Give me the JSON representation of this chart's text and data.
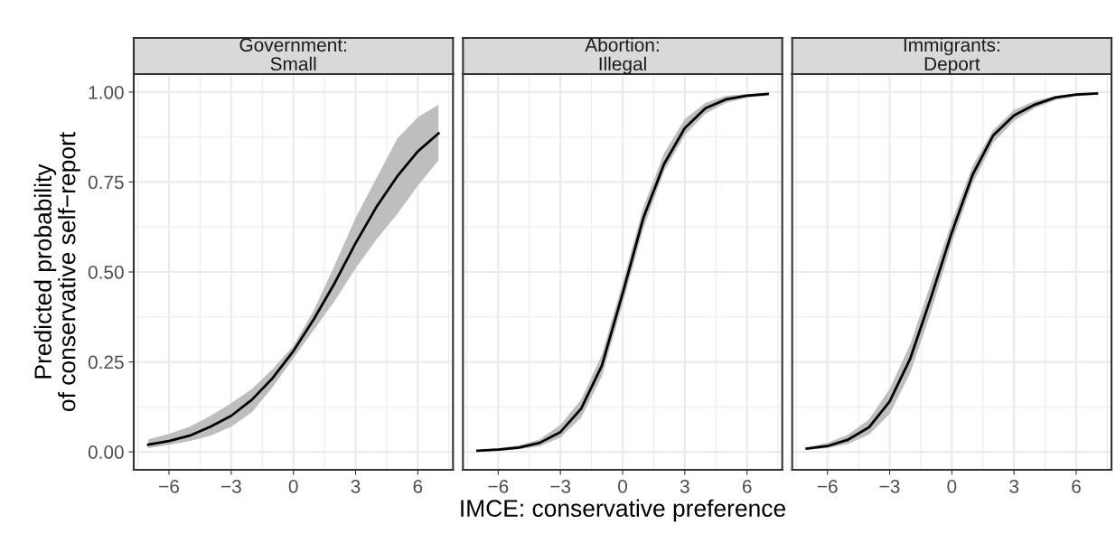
{
  "chart_data": [
    {
      "type": "line",
      "title": "Government:\nSmall",
      "ylabel": "Predicted probability\nof conservative self−report",
      "x": [
        -7,
        -6,
        -5,
        -4,
        -3,
        -2,
        -1,
        0,
        1,
        2,
        3,
        4,
        5,
        6,
        7
      ],
      "xlim": [
        -7.7,
        7.7
      ],
      "xticks": [
        -6,
        -3,
        0,
        3,
        6
      ],
      "ylim": [
        -0.05,
        1.05
      ],
      "yticks": [
        {
          "value": 0,
          "label": "0.00"
        },
        {
          "value": 0.25,
          "label": "0.25"
        },
        {
          "value": 0.5,
          "label": "0.50"
        },
        {
          "value": 0.75,
          "label": "0.75"
        },
        {
          "value": 1,
          "label": "1.00"
        }
      ],
      "grid": true,
      "series": [
        {
          "color": "#000000",
          "values": [
            0.02,
            0.03,
            0.045,
            0.07,
            0.1,
            0.145,
            0.205,
            0.28,
            0.37,
            0.47,
            0.58,
            0.68,
            0.765,
            0.835,
            0.885
          ],
          "lower": [
            0.01,
            0.02,
            0.03,
            0.045,
            0.07,
            0.11,
            0.18,
            0.26,
            0.34,
            0.42,
            0.51,
            0.59,
            0.66,
            0.74,
            0.81
          ],
          "upper": [
            0.035,
            0.05,
            0.07,
            0.1,
            0.135,
            0.175,
            0.23,
            0.295,
            0.395,
            0.52,
            0.65,
            0.76,
            0.87,
            0.93,
            0.965
          ]
        }
      ]
    },
    {
      "type": "line",
      "title": "Abortion:\nIllegal",
      "xlabel": "IMCE: conservative preference",
      "x": [
        -7,
        -6,
        -5,
        -4,
        -3,
        -2,
        -1,
        0,
        1,
        2,
        3,
        4,
        5,
        6,
        7
      ],
      "xlim": [
        -7.7,
        7.7
      ],
      "xticks": [
        -6,
        -3,
        0,
        3,
        6
      ],
      "ylim": [
        -0.05,
        1.05
      ],
      "yticks": [
        0,
        0.25,
        0.5,
        0.75,
        1
      ],
      "grid": true,
      "tick_labels": "x",
      "series": [
        {
          "color": "#000000",
          "values": [
            0.003,
            0.006,
            0.012,
            0.025,
            0.055,
            0.12,
            0.24,
            0.44,
            0.65,
            0.8,
            0.9,
            0.955,
            0.98,
            0.99,
            0.995
          ],
          "lower": [
            0.001,
            0.003,
            0.007,
            0.015,
            0.04,
            0.095,
            0.21,
            0.41,
            0.62,
            0.78,
            0.88,
            0.94,
            0.97,
            0.985,
            0.99
          ],
          "upper": [
            0.005,
            0.01,
            0.018,
            0.035,
            0.075,
            0.145,
            0.27,
            0.47,
            0.68,
            0.83,
            0.925,
            0.97,
            0.99,
            0.995,
            0.998
          ]
        }
      ]
    },
    {
      "type": "line",
      "title": "Immigrants:\nDeport",
      "x": [
        -7,
        -6,
        -5,
        -4,
        -3,
        -2,
        -1,
        0,
        1,
        2,
        3,
        4,
        5,
        6,
        7
      ],
      "xlim": [
        -7.7,
        7.7
      ],
      "xticks": [
        -6,
        -3,
        0,
        3,
        6
      ],
      "ylim": [
        -0.05,
        1.05
      ],
      "yticks": [
        0,
        0.25,
        0.5,
        0.75,
        1
      ],
      "grid": true,
      "tick_labels": "x",
      "series": [
        {
          "color": "#000000",
          "values": [
            0.009,
            0.016,
            0.034,
            0.068,
            0.14,
            0.26,
            0.43,
            0.61,
            0.77,
            0.88,
            0.935,
            0.965,
            0.985,
            0.993,
            0.996
          ],
          "lower": [
            0.005,
            0.01,
            0.022,
            0.048,
            0.105,
            0.22,
            0.39,
            0.58,
            0.745,
            0.86,
            0.92,
            0.955,
            0.978,
            0.988,
            0.993
          ],
          "upper": [
            0.013,
            0.025,
            0.048,
            0.09,
            0.175,
            0.3,
            0.47,
            0.64,
            0.795,
            0.895,
            0.95,
            0.975,
            0.99,
            0.996,
            0.998
          ]
        }
      ]
    }
  ]
}
